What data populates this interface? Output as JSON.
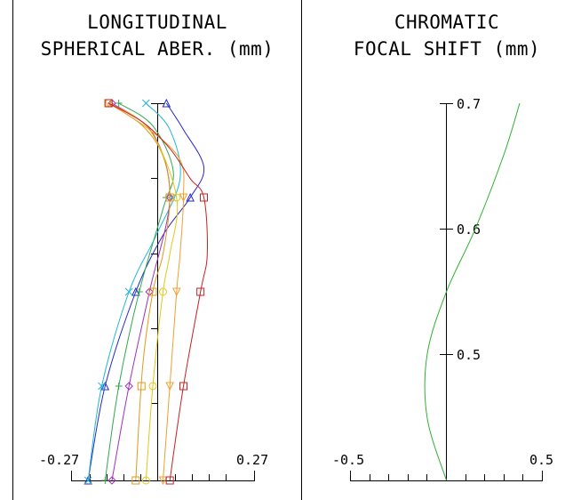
{
  "chart_data": [
    {
      "type": "line",
      "title_lines": [
        "LONGITUDINAL",
        "SPHERICAL ABER. (mm)"
      ],
      "x_tick_labels": [
        "-0.27",
        "0.27"
      ],
      "xlim": [
        -0.27,
        0.27
      ],
      "ylim": [
        0,
        1
      ],
      "grid": false,
      "series": [
        {
          "color": "#2727c8",
          "marker": "triangle",
          "points": [
            [
              0.01,
              1.0
            ],
            [
              0.06,
              0.93
            ],
            [
              0.12,
              0.83
            ],
            [
              0.08,
              0.75
            ],
            [
              0.0,
              0.65
            ],
            [
              -0.08,
              0.5
            ],
            [
              -0.17,
              0.25
            ],
            [
              -0.22,
              0.0
            ]
          ]
        },
        {
          "color": "#1fb8d0",
          "marker": "x",
          "points": [
            [
              -0.05,
              1.0
            ],
            [
              0.02,
              0.93
            ],
            [
              0.05,
              0.8
            ],
            [
              -0.02,
              0.65
            ],
            [
              -0.1,
              0.5
            ],
            [
              -0.18,
              0.25
            ],
            [
              -0.22,
              0.0
            ]
          ]
        },
        {
          "color": "#2fa84f",
          "marker": "plus",
          "points": [
            [
              -0.13,
              1.0
            ],
            [
              -0.03,
              0.94
            ],
            [
              0.03,
              0.82
            ],
            [
              0.0,
              0.72
            ],
            [
              -0.07,
              0.5
            ],
            [
              -0.13,
              0.25
            ],
            [
              -0.17,
              0.0
            ]
          ]
        },
        {
          "color": "#a030b8",
          "marker": "diamond",
          "points": [
            [
              -0.15,
              1.0
            ],
            [
              -0.03,
              0.92
            ],
            [
              0.02,
              0.75
            ],
            [
              -0.04,
              0.5
            ],
            [
              -0.1,
              0.25
            ],
            [
              -0.15,
              0.0
            ]
          ]
        },
        {
          "color": "#e09a1a",
          "marker": "square",
          "points": [
            [
              -0.16,
              1.0
            ],
            [
              -0.06,
              0.94
            ],
            [
              0.0,
              0.86
            ],
            [
              0.02,
              0.75
            ],
            [
              0.0,
              0.6
            ],
            [
              -0.03,
              0.5
            ],
            [
              -0.06,
              0.3
            ],
            [
              -0.08,
              0.0
            ]
          ]
        },
        {
          "color": "#e0c818",
          "marker": "circle",
          "points": [
            [
              -0.16,
              1.0
            ],
            [
              -0.04,
              0.93
            ],
            [
              0.04,
              0.75
            ],
            [
              0.02,
              0.6
            ],
            [
              0.0,
              0.5
            ],
            [
              -0.03,
              0.25
            ],
            [
              -0.05,
              0.0
            ]
          ]
        },
        {
          "color": "#f0a030",
          "marker": "triangle-down",
          "points": [
            [
              -0.16,
              1.0
            ],
            [
              -0.04,
              0.93
            ],
            [
              0.05,
              0.85
            ],
            [
              0.06,
              0.75
            ],
            [
              0.05,
              0.6
            ],
            [
              0.04,
              0.5
            ],
            [
              0.02,
              0.25
            ],
            [
              0.0,
              0.0
            ]
          ]
        },
        {
          "color": "#c82020",
          "marker": "square",
          "points": [
            [
              -0.16,
              1.0
            ],
            [
              -0.06,
              0.95
            ],
            [
              0.02,
              0.88
            ],
            [
              0.08,
              0.8
            ],
            [
              0.12,
              0.75
            ],
            [
              0.13,
              0.6
            ],
            [
              0.11,
              0.5
            ],
            [
              0.06,
              0.25
            ],
            [
              0.02,
              0.0
            ]
          ]
        }
      ]
    },
    {
      "type": "line",
      "title_lines": [
        "CHROMATIC",
        "FOCAL SHIFT (mm)"
      ],
      "x_tick_labels": [
        "-0.5",
        "0.5"
      ],
      "y_tick_labels": [
        "0.7",
        "0.6",
        "0.5"
      ],
      "xlim": [
        -0.5,
        0.5
      ],
      "ylim": [
        0.4,
        0.7
      ],
      "grid": false,
      "series": [
        {
          "color": "#30b030",
          "points": [
            [
              0.0,
              0.4
            ],
            [
              -0.1,
              0.45
            ],
            [
              -0.1,
              0.5
            ],
            [
              0.0,
              0.55
            ],
            [
              0.15,
              0.6
            ],
            [
              0.3,
              0.66
            ],
            [
              0.38,
              0.7
            ]
          ]
        }
      ]
    }
  ]
}
